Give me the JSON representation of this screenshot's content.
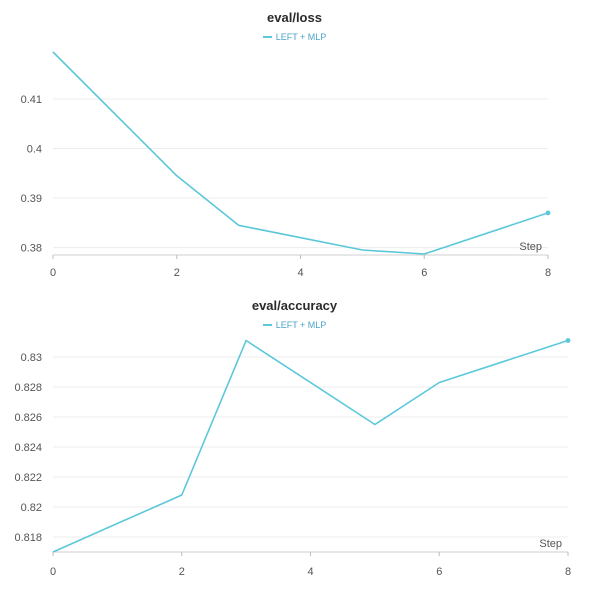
{
  "chart_data": [
    {
      "type": "line",
      "title": "eval/loss",
      "xlabel": "Step",
      "ylabel": "",
      "xlim": [
        0,
        8
      ],
      "ylim": [
        0.3785,
        0.4195
      ],
      "x_ticks": [
        0,
        2,
        4,
        6,
        8
      ],
      "y_ticks": [
        0.38,
        0.39,
        0.4,
        0.41
      ],
      "y_tick_labels": [
        "0.38",
        "0.39",
        "0.4",
        "0.41"
      ],
      "grid": true,
      "legend": "top-center",
      "color": "#5bc8d9",
      "series": [
        {
          "name": "LEFT + MLP",
          "x": [
            0,
            2,
            3,
            5,
            6,
            8
          ],
          "y": [
            0.4195,
            0.3945,
            0.3845,
            0.3795,
            0.3787,
            0.387
          ]
        }
      ]
    },
    {
      "type": "line",
      "title": "eval/accuracy",
      "xlabel": "Step",
      "ylabel": "",
      "xlim": [
        0,
        8
      ],
      "ylim": [
        0.817,
        0.8312
      ],
      "x_ticks": [
        0,
        2,
        4,
        6,
        8
      ],
      "y_ticks": [
        0.818,
        0.82,
        0.822,
        0.824,
        0.826,
        0.828,
        0.83
      ],
      "y_tick_labels": [
        "0.818",
        "0.82",
        "0.822",
        "0.824",
        "0.826",
        "0.828",
        "0.83"
      ],
      "grid": true,
      "legend": "top-center",
      "color": "#5bc8d9",
      "series": [
        {
          "name": "LEFT + MLP",
          "x": [
            0,
            2,
            3,
            5,
            6,
            8
          ],
          "y": [
            0.817,
            0.8208,
            0.8311,
            0.8255,
            0.8283,
            0.8311
          ]
        }
      ]
    }
  ]
}
